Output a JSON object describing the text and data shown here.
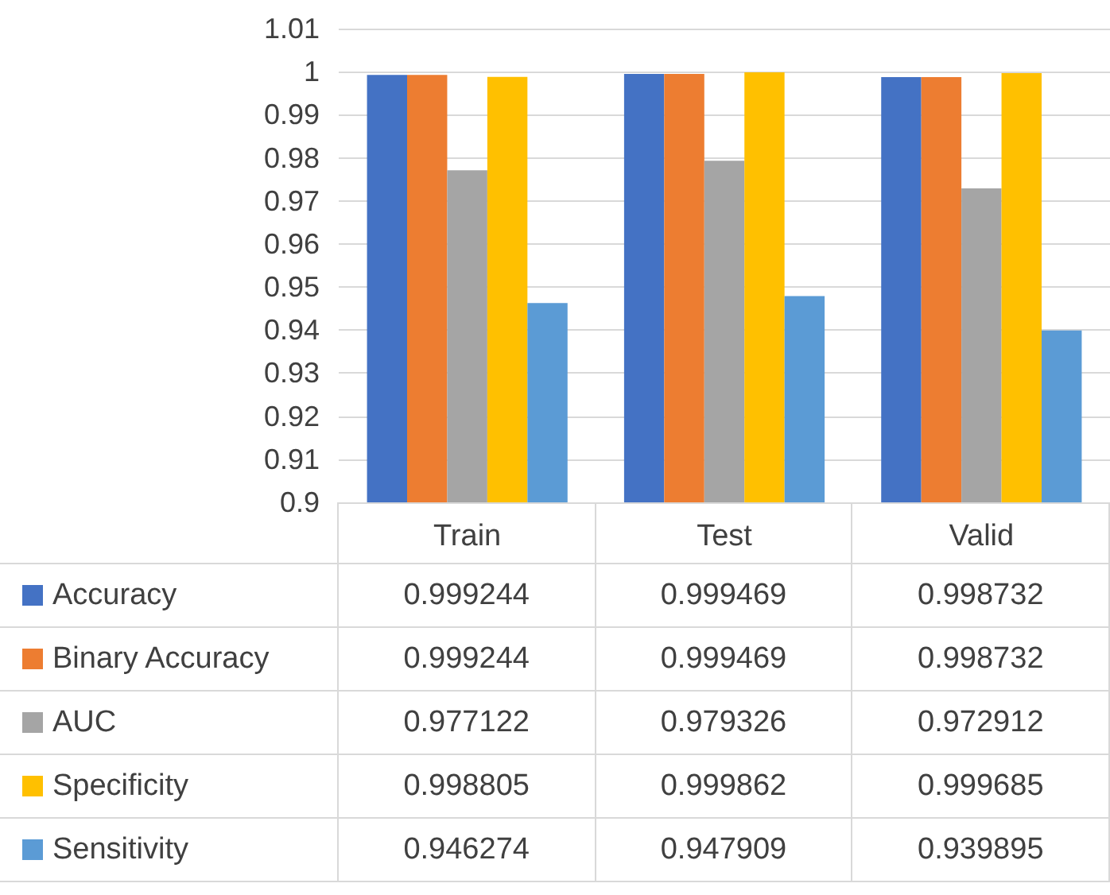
{
  "chart_data": {
    "type": "bar",
    "categories": [
      "Train",
      "Test",
      "Valid"
    ],
    "series": [
      {
        "name": "Accuracy",
        "color": "#4472c4",
        "values": [
          0.999244,
          0.999469,
          0.998732
        ]
      },
      {
        "name": "Binary Accuracy",
        "color": "#ed7d31",
        "values": [
          0.999244,
          0.999469,
          0.998732
        ]
      },
      {
        "name": "AUC",
        "color": "#a5a5a5",
        "values": [
          0.977122,
          0.979326,
          0.972912
        ]
      },
      {
        "name": "Specificity",
        "color": "#ffc000",
        "values": [
          0.998805,
          0.999862,
          0.999685
        ]
      },
      {
        "name": "Sensitivity",
        "color": "#5b9bd5",
        "values": [
          0.946274,
          0.947909,
          0.939895
        ]
      }
    ],
    "ylim": [
      0.9,
      1.01
    ],
    "yticks": [
      0.9,
      0.91,
      0.92,
      0.93,
      0.94,
      0.95,
      0.96,
      0.97,
      0.98,
      0.99,
      1,
      1.01
    ],
    "grid": "y",
    "legend": "bottom",
    "data_labels": true
  }
}
